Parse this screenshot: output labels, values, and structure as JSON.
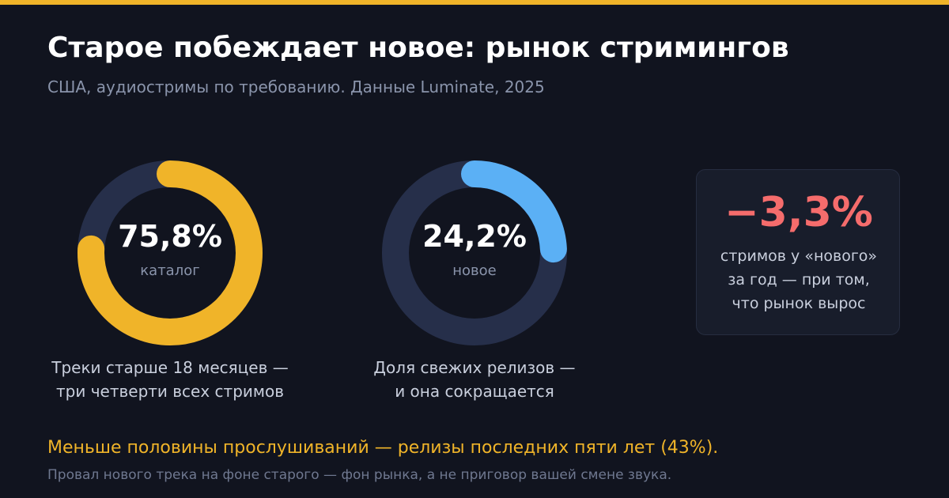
{
  "header": {
    "title": "Старое побеждает новое: рынок стримингов",
    "subtitle": "США, аудиостримы по требованию. Данные Luminate, 2025"
  },
  "colors": {
    "accent": "#f0b429",
    "new": "#5bb0f5",
    "negative": "#f56c6c",
    "track": "#262f4a",
    "background": "#11141f"
  },
  "chart_data": [
    {
      "type": "pie",
      "value": 75.8,
      "center_value": "75,8%",
      "center_label": "каталог",
      "caption": [
        "Треки старше 18 месяцев —",
        "три четверти всех стримов"
      ]
    },
    {
      "type": "pie",
      "value": 24.2,
      "center_value": "24,2%",
      "center_label": "новое",
      "caption": [
        "Доля свежих релизов —",
        "и она сокращается"
      ]
    }
  ],
  "stat_card": {
    "value": "−3,3%",
    "text": [
      "стримов у «нового»",
      "за год — при том,",
      "что рынок вырос"
    ]
  },
  "footer": {
    "main": "Меньше половины прослушиваний — релизы последних пяти лет (43%).",
    "note": "Провал нового трека на фоне старого — фон рынка, а не приговор вашей смене звука."
  }
}
